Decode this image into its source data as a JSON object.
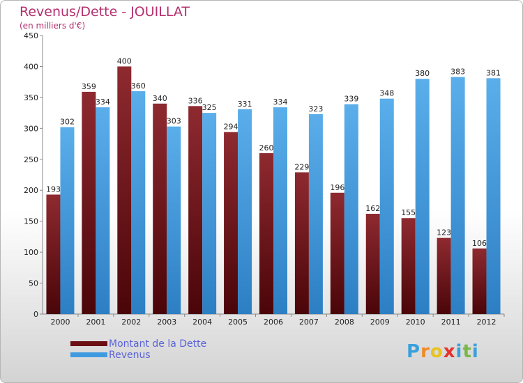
{
  "title": "Revenus/Dette - JOUILLAT",
  "subtitle": "(en milliers d'€)",
  "colors": {
    "dette": "#6b0f14",
    "revenus": "#3f9ae0",
    "title": "#b5306e",
    "legend_text": "#5a63d8"
  },
  "logo": {
    "text": "Proxiti",
    "letters": [
      "P",
      "r",
      "o",
      "x",
      "i",
      "t",
      "i"
    ],
    "letter_colors": [
      "#3aa0dc",
      "#f08a24",
      "#e8c21e",
      "#e5322e",
      "#3aa0dc",
      "#7ab648",
      "#3aa0dc"
    ]
  },
  "chart_data": {
    "type": "bar",
    "categories": [
      "2000",
      "2001",
      "2002",
      "2003",
      "2004",
      "2005",
      "2006",
      "2007",
      "2008",
      "2009",
      "2010",
      "2011",
      "2012"
    ],
    "series": [
      {
        "name": "Montant de la Dette",
        "values": [
          193,
          359,
          400,
          340,
          336,
          294,
          260,
          229,
          196,
          162,
          155,
          123,
          106
        ]
      },
      {
        "name": "Revenus",
        "values": [
          302,
          334,
          360,
          303,
          325,
          331,
          334,
          323,
          339,
          348,
          380,
          383,
          381
        ]
      }
    ],
    "ylim": [
      0,
      450
    ],
    "yticks": [
      0,
      50,
      100,
      150,
      200,
      250,
      300,
      350,
      400,
      450
    ],
    "grid": false,
    "legend_position": "bottom-left"
  }
}
